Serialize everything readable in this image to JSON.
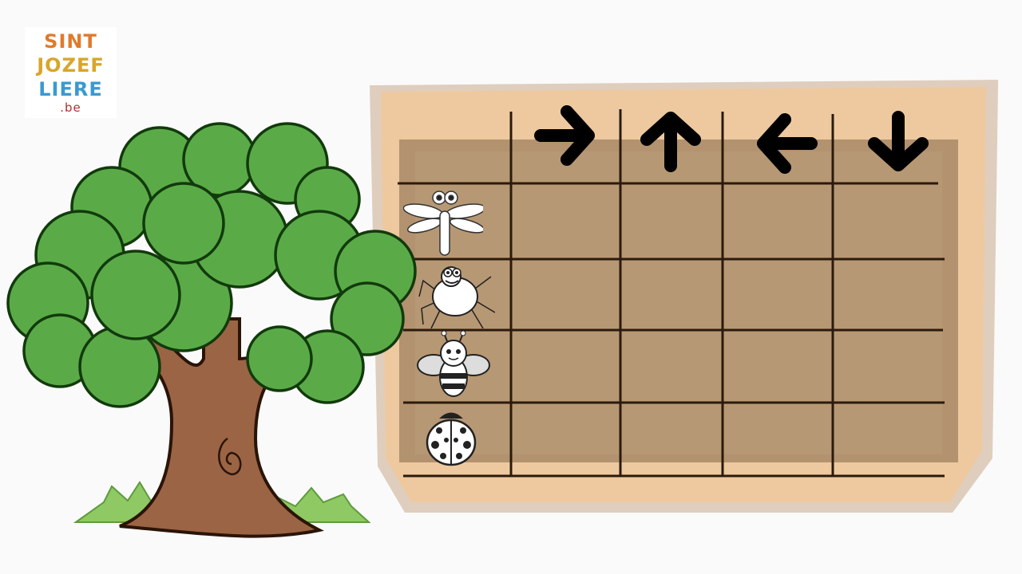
{
  "logo": {
    "line1": "SINT",
    "line2": "JOZEF",
    "line3": "LIERE",
    "line4": ".be"
  },
  "grid": {
    "columns": 5,
    "rows": 5,
    "header_arrows": [
      "arrow-right-icon",
      "arrow-up-icon",
      "arrow-left-icon",
      "arrow-down-icon"
    ],
    "row_insects": [
      "dragonfly-icon",
      "spider-icon",
      "bee-icon",
      "ladybug-icon"
    ]
  },
  "colors": {
    "board_frame": "#e9c39a",
    "board_inner": "#b89a78",
    "grid_line": "#2b1a0c",
    "leaf": "#5aab48",
    "trunk": "#9b6444",
    "grass": "#8fc963"
  }
}
